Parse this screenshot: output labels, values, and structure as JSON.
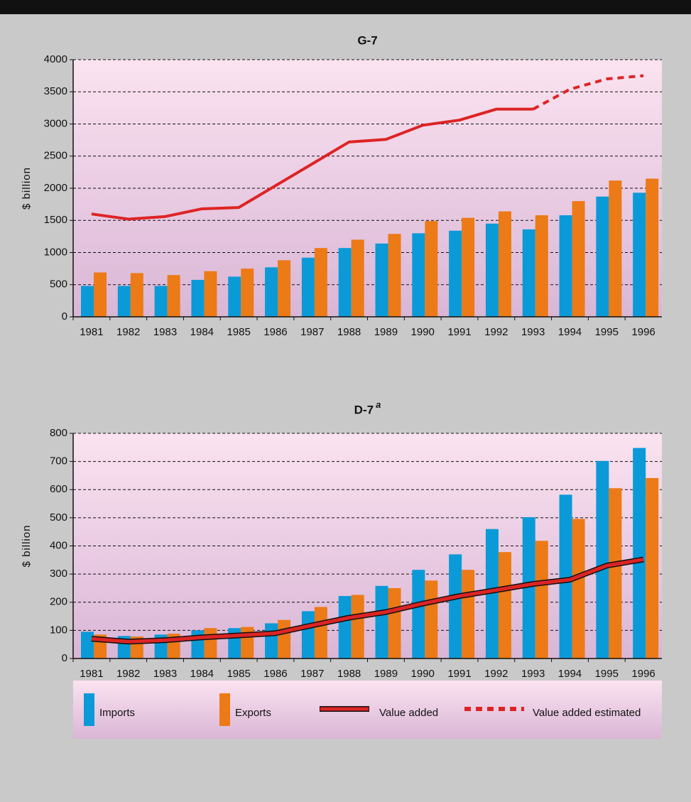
{
  "chart_data": [
    {
      "type": "combo",
      "title": "G-7",
      "y_label": "$ billion",
      "categories": [
        "1981",
        "1982",
        "1983",
        "1984",
        "1985",
        "1986",
        "1987",
        "1988",
        "1989",
        "1990",
        "1991",
        "1992",
        "1993",
        "1994",
        "1995",
        "1996"
      ],
      "ylim": [
        0,
        4000
      ],
      "yticks": [
        0,
        500,
        1000,
        1500,
        2000,
        2500,
        3000,
        3500,
        4000
      ],
      "grid": true,
      "series": [
        {
          "name": "Imports",
          "type": "bar",
          "color": "#0a9ad8",
          "values": [
            480,
            480,
            480,
            575,
            625,
            770,
            920,
            1070,
            1140,
            1300,
            1340,
            1450,
            1360,
            1580,
            1870,
            1930
          ]
        },
        {
          "name": "Exports",
          "type": "bar",
          "color": "#ec7a16",
          "values": [
            690,
            680,
            650,
            710,
            750,
            880,
            1070,
            1200,
            1290,
            1490,
            1540,
            1640,
            1580,
            1800,
            2120,
            2150
          ]
        },
        {
          "name": "Value added",
          "type": "line",
          "color": "#dd2424",
          "line_style": "solid",
          "values": [
            1600,
            1520,
            1560,
            1680,
            1700,
            2040,
            2380,
            2720,
            2760,
            2980,
            3060,
            3230,
            3230,
            null,
            null,
            null
          ]
        },
        {
          "name": "Value added estimated",
          "type": "line",
          "color": "#dd2424",
          "line_style": "dashed",
          "values": [
            null,
            null,
            null,
            null,
            null,
            null,
            null,
            null,
            null,
            null,
            null,
            null,
            3230,
            3540,
            3700,
            3750
          ]
        }
      ]
    },
    {
      "type": "combo",
      "title": "D-7",
      "title_note": "a",
      "y_label": "$ billion",
      "categories": [
        "1981",
        "1982",
        "1983",
        "1984",
        "1985",
        "1986",
        "1987",
        "1988",
        "1989",
        "1990",
        "1991",
        "1992",
        "1993",
        "1994",
        "1995",
        "1996"
      ],
      "ylim": [
        0,
        800
      ],
      "yticks": [
        0,
        100,
        200,
        300,
        400,
        500,
        600,
        700,
        800
      ],
      "grid": true,
      "series": [
        {
          "type": "bar",
          "color": "#0a9ad8",
          "values": [
            95,
            80,
            85,
            100,
            108,
            125,
            168,
            222,
            258,
            315,
            370,
            460,
            502,
            582,
            702,
            748
          ]
        },
        {
          "type": "bar",
          "color": "#ec7a16",
          "values": [
            85,
            78,
            88,
            108,
            112,
            137,
            183,
            226,
            250,
            277,
            315,
            378,
            418,
            496,
            605,
            641
          ]
        },
        {
          "type": "line",
          "color": "#dd2424",
          "line_style": "solid",
          "outline": true,
          "values": [
            70,
            60,
            65,
            75,
            82,
            90,
            118,
            145,
            165,
            195,
            222,
            243,
            265,
            280,
            330,
            352
          ]
        }
      ]
    }
  ]
}
